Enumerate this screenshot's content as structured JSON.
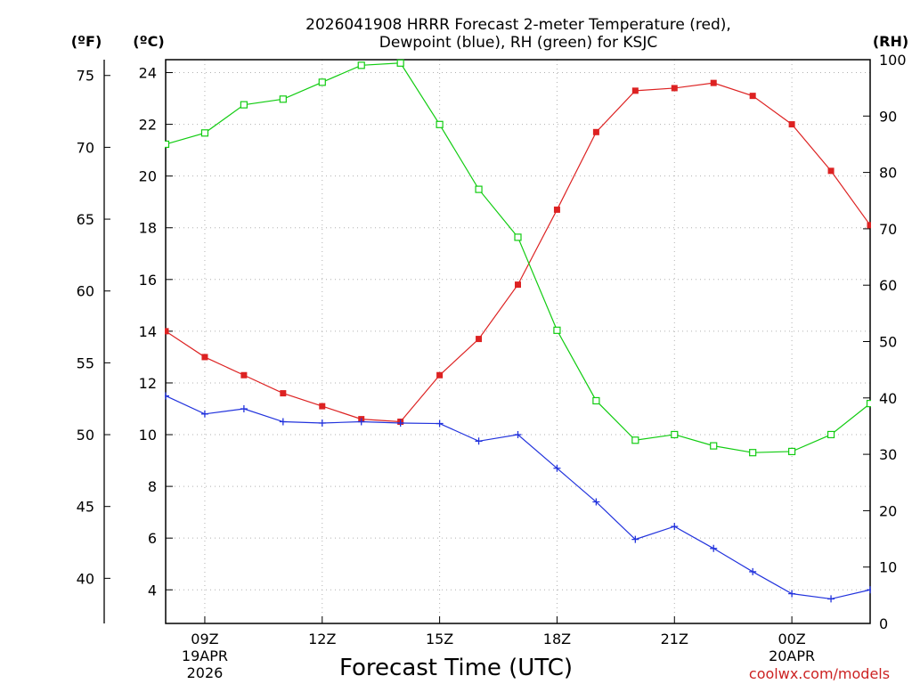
{
  "chart_data": {
    "type": "line",
    "title_line1": "2026041908 HRRR Forecast 2-meter Temperature (red),",
    "title_line2": "Dewpoint (blue), RH (green) for KSJC",
    "xlabel": "Forecast Time (UTC)",
    "credit": "coolwx.com/models",
    "units": {
      "fahrenheit": "(ºF)",
      "celsius": "(ºC)",
      "rh": "(RH)"
    },
    "x_range": [
      8,
      26
    ],
    "x_hours": [
      8,
      9,
      10,
      11,
      12,
      13,
      14,
      15,
      16,
      17,
      18,
      19,
      20,
      21,
      22,
      23,
      24,
      25,
      26
    ],
    "x_ticks": [
      {
        "hour": 9,
        "label": "09Z",
        "date": "19APR",
        "year": "2026"
      },
      {
        "hour": 12,
        "label": "12Z"
      },
      {
        "hour": 15,
        "label": "15Z"
      },
      {
        "hour": 18,
        "label": "18Z"
      },
      {
        "hour": 21,
        "label": "21Z"
      },
      {
        "hour": 24,
        "label": "00Z",
        "date": "20APR"
      }
    ],
    "celsius_axis": {
      "range": [
        2.7,
        24.5
      ],
      "ticks": [
        "4",
        "6",
        "8",
        "10",
        "12",
        "14",
        "16",
        "18",
        "20",
        "22",
        "24"
      ]
    },
    "fahrenheit_axis": {
      "range": [
        36.86,
        76.1
      ],
      "ticks": [
        "40",
        "45",
        "50",
        "55",
        "60",
        "65",
        "70",
        "75"
      ]
    },
    "rh_axis": {
      "range": [
        0,
        100
      ],
      "ticks": [
        "0",
        "10",
        "20",
        "30",
        "40",
        "50",
        "60",
        "70",
        "80",
        "90",
        "100"
      ]
    },
    "grid": true,
    "series": [
      {
        "name": "Temperature",
        "axis": "celsius",
        "color": "#dd2222",
        "marker": "filled-square",
        "values": [
          14.0,
          13.0,
          12.3,
          11.6,
          11.1,
          10.6,
          10.5,
          12.3,
          13.7,
          15.8,
          18.7,
          21.7,
          23.3,
          23.4,
          23.6,
          23.1,
          22.0,
          20.2,
          18.1
        ]
      },
      {
        "name": "Dewpoint",
        "axis": "celsius",
        "color": "#2233dd",
        "marker": "plus",
        "values": [
          11.5,
          10.8,
          11.0,
          10.5,
          10.45,
          10.5,
          10.45,
          10.43,
          9.75,
          10.0,
          8.7,
          7.4,
          5.95,
          6.45,
          5.6,
          4.7,
          3.85,
          3.65,
          4.0
        ]
      },
      {
        "name": "RH",
        "axis": "rh",
        "color": "#11cc11",
        "marker": "open-square",
        "values": [
          85,
          87,
          92,
          93,
          96,
          99,
          99.4,
          88.5,
          77,
          68.5,
          52,
          39.5,
          32.5,
          33.5,
          31.5,
          30.3,
          30.5,
          33.5,
          39
        ]
      }
    ]
  }
}
